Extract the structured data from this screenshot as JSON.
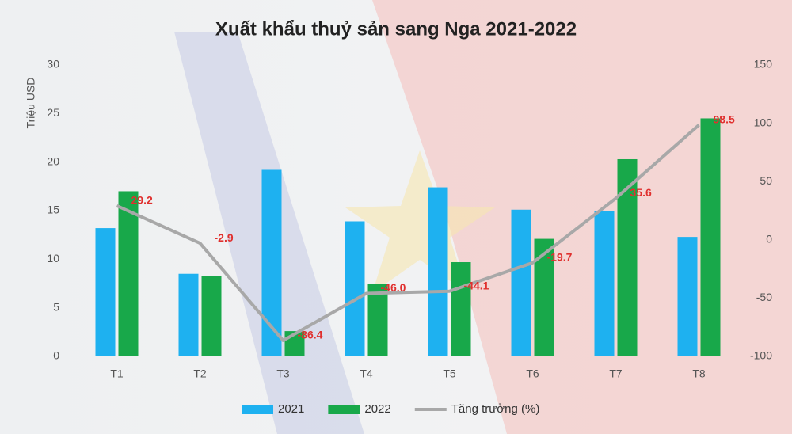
{
  "chart_data": {
    "type": "bar",
    "title": "Xuất khẩu thuỷ sản sang Nga 2021-2022",
    "y_label": "Triệu USD",
    "categories": [
      "T1",
      "T2",
      "T3",
      "T4",
      "T5",
      "T6",
      "T7",
      "T8"
    ],
    "series": [
      {
        "name": "2021",
        "type": "bar",
        "color": "#1eb1f0",
        "values": [
          13.2,
          8.5,
          19.2,
          13.9,
          17.4,
          15.1,
          15.0,
          12.3
        ]
      },
      {
        "name": "2022",
        "type": "bar",
        "color": "#18a84a",
        "values": [
          17.0,
          8.3,
          2.6,
          7.5,
          9.7,
          12.1,
          20.3,
          24.5
        ]
      },
      {
        "name": "Tăng trưởng (%)",
        "type": "line",
        "axis": "y2",
        "color": "#a8a8a8",
        "values": [
          29.2,
          -2.9,
          -86.4,
          -46.0,
          -44.1,
          -19.7,
          35.6,
          98.5
        ],
        "value_labels": [
          "29.2",
          "-2.9",
          "-86.4",
          "-46.0",
          "-44.1",
          "-19.7",
          "35.6",
          "98.5"
        ]
      }
    ],
    "ylim": [
      0,
      30
    ],
    "yticks": [
      0,
      5,
      10,
      15,
      20,
      25,
      30
    ],
    "y2lim": [
      -100,
      150
    ],
    "y2ticks": [
      -100,
      -50,
      0,
      50,
      100,
      150
    ],
    "legend": "bottom"
  }
}
